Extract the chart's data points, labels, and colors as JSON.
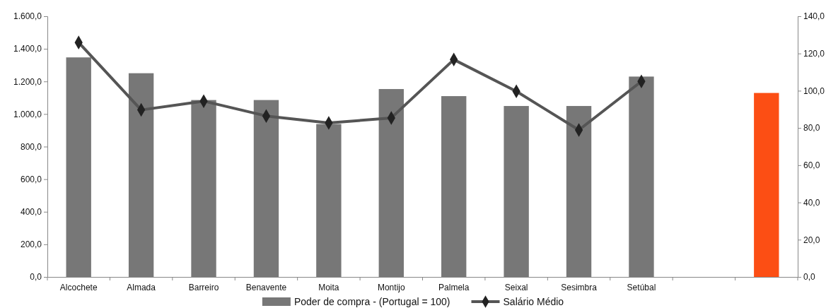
{
  "chart_data": {
    "type": "bar",
    "categories": [
      "Alcochete",
      "Almada",
      "Barreiro",
      "Benavente",
      "Moita",
      "Montijo",
      "Palmela",
      "Seixal",
      "Sesimbra",
      "Setúbal",
      null,
      null
    ],
    "series": [
      {
        "name": "Poder de compra - (Portugal = 100)",
        "axis": "y2",
        "color": "#777777",
        "colors": [
          "#777777",
          "#777777",
          "#777777",
          "#777777",
          "#777777",
          "#777777",
          "#777777",
          "#777777",
          "#777777",
          "#777777",
          null,
          "#fc4e14"
        ],
        "values": [
          117.9,
          109.4,
          95.0,
          95.0,
          82.1,
          100.9,
          97.1,
          91.8,
          91.8,
          107.6,
          null,
          98.8
        ]
      },
      {
        "name": "Salário Médio",
        "type": "line",
        "color": "#555555",
        "marker": "diamond",
        "values": [
          1439,
          1025,
          1079,
          988,
          945,
          976,
          1334,
          1139,
          902,
          1200,
          null,
          null
        ]
      }
    ],
    "ylim": [
      0,
      1600
    ],
    "yticks": [
      {
        "value": 0,
        "label": "0,0"
      },
      {
        "value": 200,
        "label": "200,0"
      },
      {
        "value": 400,
        "label": "400,0"
      },
      {
        "value": 600,
        "label": "600,0"
      },
      {
        "value": 800,
        "label": "800,0"
      },
      {
        "value": 1000,
        "label": "1.000,0"
      },
      {
        "value": 1200,
        "label": "1.200,0"
      },
      {
        "value": 1400,
        "label": "1.400,0"
      },
      {
        "value": 1600,
        "label": "1.600,0"
      }
    ],
    "y2lim": [
      0,
      140
    ],
    "y2ticks": [
      {
        "value": 0,
        "label": "0,0"
      },
      {
        "value": 20,
        "label": "20,0"
      },
      {
        "value": 40,
        "label": "40,0"
      },
      {
        "value": 60,
        "label": "60,0"
      },
      {
        "value": 80,
        "label": "80,0"
      },
      {
        "value": 100,
        "label": "100,0"
      },
      {
        "value": 120,
        "label": "120,0"
      },
      {
        "value": 140,
        "label": "140,0"
      }
    ],
    "legend": "bottom"
  }
}
